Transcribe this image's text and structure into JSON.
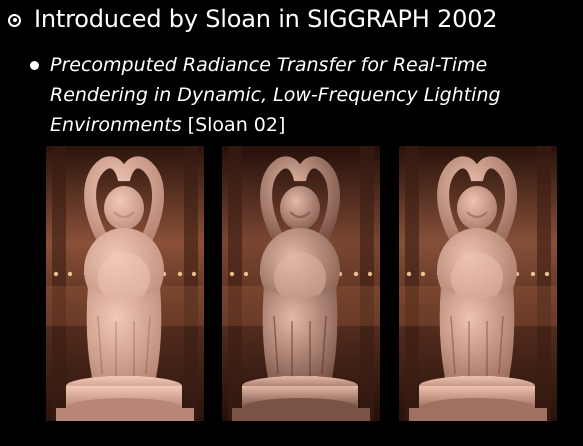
{
  "slide": {
    "heading": "Introduced by Sloan in SIGGRAPH 2002",
    "sub_bullet": {
      "title_italic": "Precomputed Radiance Transfer for Real-Time Rendering in Dynamic, Low-Frequency Lighting Environments",
      "citation": " [Sloan 02]"
    }
  },
  "figures": {
    "icon": "buddha-statue-render",
    "count": 3
  },
  "colors": {
    "background": "#000000",
    "text": "#ffffff",
    "statue": "#e8b8a8",
    "environment": "#6a3a28"
  }
}
